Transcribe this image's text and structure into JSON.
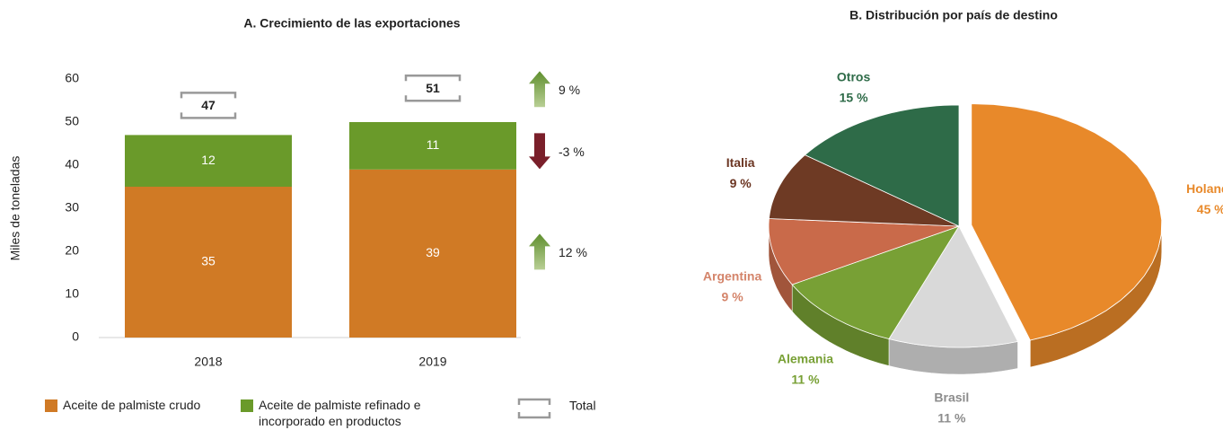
{
  "chart_data": [
    {
      "type": "bar",
      "stacked": true,
      "title": "A. Crecimiento de las exportaciones",
      "ylabel": "Miles de toneladas",
      "categories": [
        "2018",
        "2019"
      ],
      "series": [
        {
          "name": "Aceite de palmiste crudo",
          "color": "#d07a25",
          "values": [
            35,
            39
          ]
        },
        {
          "name": "Aceite de palmiste refinado e incorporado en productos procesados",
          "color": "#6a9a2a",
          "values": [
            12,
            11
          ]
        }
      ],
      "totals": [
        47,
        51
      ],
      "total_label": "Total",
      "changes": [
        {
          "value": 12,
          "label": "12 %"
        },
        {
          "value": -3,
          "label": "-3 %"
        },
        {
          "value": 9,
          "label": "9 %"
        }
      ],
      "ylim": [
        0,
        60
      ],
      "yticks": [
        0,
        10,
        20,
        30,
        40,
        50,
        60
      ],
      "grid": false
    },
    {
      "type": "pie",
      "title": "B. Distribución por país de destino",
      "categories": [
        "Holanda",
        "Brasil",
        "Alemania",
        "Argentina",
        "Italia",
        "Otros"
      ],
      "values": [
        45,
        11,
        11,
        9,
        9,
        15
      ],
      "value_labels": [
        "45 %",
        "11 %",
        "11 %",
        "9 %",
        "9 %",
        "15 %"
      ],
      "colors": [
        "#e8892a",
        "#d9d9d9",
        "#78a035",
        "#c96a4a",
        "#6e3a24",
        "#2e6b48"
      ],
      "label_colors": [
        "#e8892a",
        "#8c8c8c",
        "#78a035",
        "#d4846a",
        "#6b3522",
        "#2e6b48"
      ],
      "exploded": [
        0
      ]
    }
  ]
}
